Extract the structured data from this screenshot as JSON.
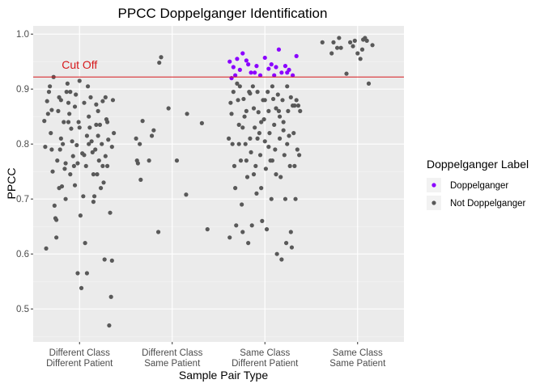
{
  "chart_data": {
    "type": "scatter",
    "title": "PPCC Doppelganger Identification",
    "xlabel": "Sample Pair Type",
    "ylabel": "PPCC",
    "categories": [
      [
        "Different Class",
        "Different Patient"
      ],
      [
        "Different Class",
        "Same Patient"
      ],
      [
        "Same Class",
        "Different Patient"
      ],
      [
        "Same Class",
        "Same Patient"
      ]
    ],
    "ylim": [
      0.44,
      1.015
    ],
    "yticks": [
      0.5,
      0.6,
      0.7,
      0.8,
      0.9,
      1.0
    ],
    "ytick_labels": [
      "0.5",
      "0.6",
      "0.7",
      "0.8",
      "0.9",
      "1.0"
    ],
    "cutoff": {
      "value": 0.922,
      "label": "Cut Off",
      "color": "#d7191c"
    },
    "grid": true,
    "jitter_width": 0.4,
    "legend": {
      "title": "Doppelganger Label",
      "placement": "right",
      "entries": [
        {
          "label": "Doppelganger",
          "color": "#8b00ff"
        },
        {
          "label": "Not Doppelganger",
          "color": "#595959"
        }
      ]
    },
    "series": [
      {
        "name": "Doppelganger",
        "color": "#8b00ff",
        "points": [
          [
            2.62,
            0.95
          ],
          [
            2.64,
            0.92
          ],
          [
            2.66,
            0.94
          ],
          [
            2.7,
            0.955
          ],
          [
            2.73,
            0.935
          ],
          [
            2.76,
            0.965
          ],
          [
            2.8,
            0.952
          ],
          [
            2.82,
            0.945
          ],
          [
            2.85,
            0.93
          ],
          [
            2.89,
            0.93
          ],
          [
            2.91,
            0.942
          ],
          [
            2.95,
            0.925
          ],
          [
            3.0,
            0.957
          ],
          [
            3.04,
            0.937
          ],
          [
            3.07,
            0.945
          ],
          [
            3.1,
            0.925
          ],
          [
            3.12,
            0.94
          ],
          [
            3.15,
            0.972
          ],
          [
            3.18,
            0.93
          ],
          [
            3.22,
            0.942
          ],
          [
            3.26,
            0.935
          ],
          [
            3.3,
            0.925
          ],
          [
            3.34,
            0.96
          ],
          [
            2.68,
            0.925
          ],
          [
            3.24,
            0.93
          ]
        ]
      },
      {
        "name": "Not Doppelganger",
        "color": "#595959",
        "points": [
          [
            0.62,
            0.842
          ],
          [
            0.63,
            0.795
          ],
          [
            0.64,
            0.61
          ],
          [
            0.65,
            0.878
          ],
          [
            0.66,
            0.855
          ],
          [
            0.67,
            0.895
          ],
          [
            0.68,
            0.905
          ],
          [
            0.69,
            0.82
          ],
          [
            0.7,
            0.79
          ],
          [
            0.71,
            0.75
          ],
          [
            0.72,
            0.922
          ],
          [
            0.73,
            0.688
          ],
          [
            0.74,
            0.665
          ],
          [
            0.75,
            0.63
          ],
          [
            0.75,
            0.662
          ],
          [
            0.76,
            0.77
          ],
          [
            0.77,
            0.86
          ],
          [
            0.78,
            0.885
          ],
          [
            0.79,
            0.79
          ],
          [
            0.8,
            0.81
          ],
          [
            0.81,
            0.723
          ],
          [
            0.82,
            0.8
          ],
          [
            0.83,
            0.84
          ],
          [
            0.84,
            0.755
          ],
          [
            0.85,
            0.7
          ],
          [
            0.86,
            0.895
          ],
          [
            0.87,
            0.91
          ],
          [
            0.88,
            0.875
          ],
          [
            0.89,
            0.855
          ],
          [
            0.9,
            0.745
          ],
          [
            0.91,
            0.828
          ],
          [
            0.92,
            0.805
          ],
          [
            0.93,
            0.778
          ],
          [
            0.94,
            0.76
          ],
          [
            0.95,
            0.868
          ],
          [
            0.96,
            0.89
          ],
          [
            0.97,
            0.798
          ],
          [
            0.98,
            0.565
          ],
          [
            0.99,
            0.84
          ],
          [
            1.0,
            0.915
          ],
          [
            1.01,
            0.67
          ],
          [
            1.02,
            0.538
          ],
          [
            1.03,
            0.783
          ],
          [
            1.04,
            0.705
          ],
          [
            1.05,
            0.875
          ],
          [
            1.06,
            0.62
          ],
          [
            1.07,
            0.76
          ],
          [
            1.08,
            0.565
          ],
          [
            1.09,
            0.905
          ],
          [
            1.1,
            0.8
          ],
          [
            1.11,
            0.83
          ],
          [
            1.12,
            0.885
          ],
          [
            1.13,
            0.805
          ],
          [
            1.14,
            0.785
          ],
          [
            1.15,
            0.745
          ],
          [
            1.16,
            0.705
          ],
          [
            1.17,
            0.79
          ],
          [
            1.18,
            0.872
          ],
          [
            1.19,
            0.745
          ],
          [
            1.2,
            0.86
          ],
          [
            1.21,
            0.77
          ],
          [
            1.22,
            0.835
          ],
          [
            1.23,
            0.72
          ],
          [
            1.24,
            0.8
          ],
          [
            1.25,
            0.878
          ],
          [
            1.26,
            0.73
          ],
          [
            1.27,
            0.59
          ],
          [
            1.28,
            0.778
          ],
          [
            1.29,
            0.845
          ],
          [
            1.3,
            0.76
          ],
          [
            1.31,
            0.808
          ],
          [
            1.32,
            0.47
          ],
          [
            1.33,
            0.675
          ],
          [
            1.34,
            0.522
          ],
          [
            1.35,
            0.588
          ],
          [
            1.36,
            0.88
          ],
          [
            1.37,
            0.82
          ],
          [
            0.7,
            0.862
          ],
          [
            0.8,
            0.88
          ],
          [
            0.9,
            0.895
          ],
          [
            1.0,
            0.83
          ],
          [
            1.1,
            0.85
          ],
          [
            1.2,
            0.815
          ],
          [
            1.3,
            0.84
          ],
          [
            0.85,
            0.765
          ],
          [
            0.95,
            0.725
          ],
          [
            1.05,
            0.78
          ],
          [
            1.15,
            0.695
          ],
          [
            1.25,
            0.76
          ],
          [
            1.35,
            0.795
          ],
          [
            0.78,
            0.72
          ],
          [
            0.88,
            0.84
          ],
          [
            0.98,
            0.765
          ],
          [
            1.08,
            0.815
          ],
          [
            1.18,
            0.835
          ],
          [
            1.28,
            0.885
          ],
          [
            1.61,
            0.81
          ],
          [
            1.62,
            0.77
          ],
          [
            1.63,
            0.765
          ],
          [
            1.65,
            0.8
          ],
          [
            1.66,
            0.735
          ],
          [
            1.68,
            0.842
          ],
          [
            1.75,
            0.77
          ],
          [
            1.78,
            0.815
          ],
          [
            1.8,
            0.825
          ],
          [
            1.85,
            0.64
          ],
          [
            1.86,
            0.948
          ],
          [
            1.88,
            0.958
          ],
          [
            1.96,
            0.865
          ],
          [
            2.05,
            0.77
          ],
          [
            2.15,
            0.708
          ],
          [
            2.16,
            0.855
          ],
          [
            2.32,
            0.838
          ],
          [
            2.38,
            0.645
          ],
          [
            2.61,
            0.81
          ],
          [
            2.62,
            0.63
          ],
          [
            2.63,
            0.875
          ],
          [
            2.64,
            0.855
          ],
          [
            2.65,
            0.8
          ],
          [
            2.66,
            0.895
          ],
          [
            2.67,
            0.76
          ],
          [
            2.68,
            0.72
          ],
          [
            2.69,
            0.652
          ],
          [
            2.7,
            0.91
          ],
          [
            2.71,
            0.88
          ],
          [
            2.72,
            0.835
          ],
          [
            2.73,
            0.905
          ],
          [
            2.74,
            0.77
          ],
          [
            2.75,
            0.69
          ],
          [
            2.76,
            0.64
          ],
          [
            2.77,
            0.882
          ],
          [
            2.78,
            0.85
          ],
          [
            2.79,
            0.8
          ],
          [
            2.8,
            0.86
          ],
          [
            2.81,
            0.74
          ],
          [
            2.82,
            0.62
          ],
          [
            2.83,
            0.895
          ],
          [
            2.84,
            0.81
          ],
          [
            2.85,
            0.785
          ],
          [
            2.86,
            0.652
          ],
          [
            2.87,
            0.905
          ],
          [
            2.88,
            0.865
          ],
          [
            2.89,
            0.83
          ],
          [
            2.9,
            0.76
          ],
          [
            2.91,
            0.71
          ],
          [
            2.92,
            0.895
          ],
          [
            2.93,
            0.858
          ],
          [
            2.94,
            0.82
          ],
          [
            2.95,
            0.78
          ],
          [
            2.96,
            0.72
          ],
          [
            2.97,
            0.66
          ],
          [
            2.98,
            0.88
          ],
          [
            2.99,
            0.845
          ],
          [
            3.0,
            0.805
          ],
          [
            3.01,
            0.755
          ],
          [
            3.02,
            0.645
          ],
          [
            3.03,
            0.895
          ],
          [
            3.04,
            0.86
          ],
          [
            3.05,
            0.82
          ],
          [
            3.06,
            0.77
          ],
          [
            3.07,
            0.7
          ],
          [
            3.08,
            0.905
          ],
          [
            3.09,
            0.882
          ],
          [
            3.1,
            0.835
          ],
          [
            3.11,
            0.79
          ],
          [
            3.12,
            0.745
          ],
          [
            3.13,
            0.6
          ],
          [
            3.14,
            0.89
          ],
          [
            3.15,
            0.86
          ],
          [
            3.16,
            0.81
          ],
          [
            3.17,
            0.74
          ],
          [
            3.18,
            0.59
          ],
          [
            3.19,
            0.88
          ],
          [
            3.2,
            0.84
          ],
          [
            3.21,
            0.78
          ],
          [
            3.22,
            0.7
          ],
          [
            3.23,
            0.62
          ],
          [
            3.24,
            0.905
          ],
          [
            3.25,
            0.86
          ],
          [
            3.26,
            0.815
          ],
          [
            3.27,
            0.76
          ],
          [
            3.28,
            0.64
          ],
          [
            3.29,
            0.612
          ],
          [
            3.3,
            0.87
          ],
          [
            3.31,
            0.82
          ],
          [
            3.32,
            0.76
          ],
          [
            3.33,
            0.7
          ],
          [
            3.34,
            0.88
          ],
          [
            3.35,
            0.79
          ],
          [
            3.36,
            0.87
          ],
          [
            3.37,
            0.78
          ],
          [
            3.38,
            0.86
          ],
          [
            2.72,
            0.8
          ],
          [
            2.8,
            0.77
          ],
          [
            2.88,
            0.745
          ],
          [
            2.96,
            0.84
          ],
          [
            3.04,
            0.795
          ],
          [
            3.12,
            0.865
          ],
          [
            3.2,
            0.825
          ],
          [
            3.28,
            0.885
          ],
          [
            2.76,
            0.83
          ],
          [
            2.84,
            0.892
          ],
          [
            2.92,
            0.81
          ],
          [
            3.0,
            0.88
          ],
          [
            3.08,
            0.77
          ],
          [
            3.16,
            0.85
          ],
          [
            3.24,
            0.8
          ],
          [
            3.32,
            0.87
          ],
          [
            3.62,
            0.985
          ],
          [
            3.72,
            0.965
          ],
          [
            3.74,
            0.985
          ],
          [
            3.78,
            0.975
          ],
          [
            3.8,
            0.993
          ],
          [
            3.82,
            0.975
          ],
          [
            3.88,
            0.928
          ],
          [
            3.92,
            0.985
          ],
          [
            3.95,
            0.978
          ],
          [
            3.97,
            0.988
          ],
          [
            4.0,
            0.965
          ],
          [
            4.03,
            0.955
          ],
          [
            4.05,
            0.972
          ],
          [
            4.08,
            0.993
          ],
          [
            4.1,
            0.988
          ],
          [
            4.12,
            0.91
          ],
          [
            4.16,
            0.98
          ],
          [
            4.06,
            0.99
          ]
        ]
      }
    ]
  }
}
